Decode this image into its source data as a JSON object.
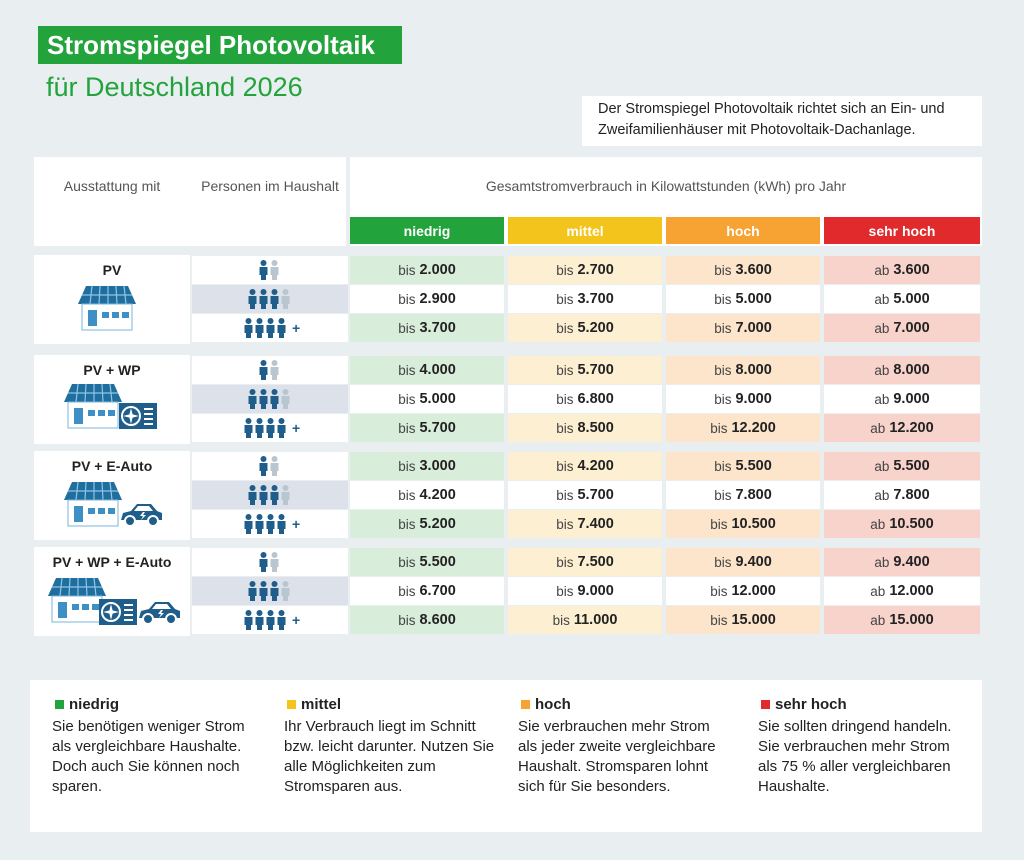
{
  "header": {
    "title": "Stromspiegel Photovoltaik",
    "subtitle": "für Deutschland 2026",
    "note": "Der Stromspiegel Photovoltaik richtet sich an Ein- und Zweifamilienhäuser mit Photovoltaik-Dachanlage."
  },
  "table": {
    "col_headers": [
      "Ausstattung mit",
      "Personen im Haushalt",
      "Gesamtstromverbrauch in Kilowattstunden (kWh) pro Jahr"
    ],
    "levels": [
      {
        "name": "niedrig",
        "color": "#22a33b",
        "tint": "#d8eedb"
      },
      {
        "name": "mittel",
        "color": "#f2c41c",
        "tint": "#fdf0d2"
      },
      {
        "name": "hoch",
        "color": "#f7a333",
        "tint": "#fde5cc"
      },
      {
        "name": "sehr hoch",
        "color": "#e02a2c",
        "tint": "#f7d3cc"
      }
    ],
    "groups": [
      {
        "label": "PV",
        "rows": [
          {
            "persons": [
              1,
              1
            ],
            "cells": [
              {
                "prefix": "bis",
                "amount": "2.000"
              },
              {
                "prefix": "bis",
                "amount": "2.700"
              },
              {
                "prefix": "bis",
                "amount": "3.600"
              },
              {
                "prefix": "ab",
                "amount": "3.600"
              }
            ]
          },
          {
            "persons": [
              3,
              1
            ],
            "cells": [
              {
                "prefix": "bis",
                "amount": "2.900"
              },
              {
                "prefix": "bis",
                "amount": "3.700"
              },
              {
                "prefix": "bis",
                "amount": "5.000"
              },
              {
                "prefix": "ab",
                "amount": "5.000"
              }
            ]
          },
          {
            "persons": [
              4,
              0
            ],
            "more": "+",
            "cells": [
              {
                "prefix": "bis",
                "amount": "3.700"
              },
              {
                "prefix": "bis",
                "amount": "5.200"
              },
              {
                "prefix": "bis",
                "amount": "7.000"
              },
              {
                "prefix": "ab",
                "amount": "7.000"
              }
            ]
          }
        ]
      },
      {
        "label": "PV + WP",
        "rows": [
          {
            "persons": [
              1,
              1
            ],
            "cells": [
              {
                "prefix": "bis",
                "amount": "4.000"
              },
              {
                "prefix": "bis",
                "amount": "5.700"
              },
              {
                "prefix": "bis",
                "amount": "8.000"
              },
              {
                "prefix": "ab",
                "amount": "8.000"
              }
            ]
          },
          {
            "persons": [
              3,
              1
            ],
            "cells": [
              {
                "prefix": "bis",
                "amount": "5.000"
              },
              {
                "prefix": "bis",
                "amount": "6.800"
              },
              {
                "prefix": "bis",
                "amount": "9.000"
              },
              {
                "prefix": "ab",
                "amount": "9.000"
              }
            ]
          },
          {
            "persons": [
              4,
              0
            ],
            "more": "+",
            "cells": [
              {
                "prefix": "bis",
                "amount": "5.700"
              },
              {
                "prefix": "bis",
                "amount": "8.500"
              },
              {
                "prefix": "bis",
                "amount": "12.200"
              },
              {
                "prefix": "ab",
                "amount": "12.200"
              }
            ]
          }
        ]
      },
      {
        "label": "PV + E-Auto",
        "rows": [
          {
            "persons": [
              1,
              1
            ],
            "cells": [
              {
                "prefix": "bis",
                "amount": "3.000"
              },
              {
                "prefix": "bis",
                "amount": "4.200"
              },
              {
                "prefix": "bis",
                "amount": "5.500"
              },
              {
                "prefix": "ab",
                "amount": "5.500"
              }
            ]
          },
          {
            "persons": [
              3,
              1
            ],
            "cells": [
              {
                "prefix": "bis",
                "amount": "4.200"
              },
              {
                "prefix": "bis",
                "amount": "5.700"
              },
              {
                "prefix": "bis",
                "amount": "7.800"
              },
              {
                "prefix": "ab",
                "amount": "7.800"
              }
            ]
          },
          {
            "persons": [
              4,
              0
            ],
            "more": "+",
            "cells": [
              {
                "prefix": "bis",
                "amount": "5.200"
              },
              {
                "prefix": "bis",
                "amount": "7.400"
              },
              {
                "prefix": "bis",
                "amount": "10.500"
              },
              {
                "prefix": "ab",
                "amount": "10.500"
              }
            ]
          }
        ]
      },
      {
        "label": "PV + WP + E-Auto",
        "rows": [
          {
            "persons": [
              1,
              1
            ],
            "cells": [
              {
                "prefix": "bis",
                "amount": "5.500"
              },
              {
                "prefix": "bis",
                "amount": "7.500"
              },
              {
                "prefix": "bis",
                "amount": "9.400"
              },
              {
                "prefix": "ab",
                "amount": "9.400"
              }
            ]
          },
          {
            "persons": [
              3,
              1
            ],
            "cells": [
              {
                "prefix": "bis",
                "amount": "6.700"
              },
              {
                "prefix": "bis",
                "amount": "9.000"
              },
              {
                "prefix": "bis",
                "amount": "12.000"
              },
              {
                "prefix": "ab",
                "amount": "12.000"
              }
            ]
          },
          {
            "persons": [
              4,
              0
            ],
            "more": "+",
            "cells": [
              {
                "prefix": "bis",
                "amount": "8.600"
              },
              {
                "prefix": "bis",
                "amount": "11.000"
              },
              {
                "prefix": "bis",
                "amount": "15.000"
              },
              {
                "prefix": "ab",
                "amount": "15.000"
              }
            ]
          }
        ]
      }
    ]
  },
  "legend": [
    {
      "name": "niedrig",
      "text": "Sie benötigen weniger Strom als vergleichbare Haushalte. Doch auch Sie können noch sparen."
    },
    {
      "name": "mittel",
      "text": "Ihr Verbrauch liegt im Schnitt bzw. leicht darunter. Nutzen Sie alle Möglichkeiten zum Stromsparen aus."
    },
    {
      "name": "hoch",
      "text": "Sie verbrauchen mehr Strom als jeder zweite vergleichbare Haushalt. Stromsparen lohnt sich für Sie besonders."
    },
    {
      "name": "sehr hoch",
      "text": "Sie sollten dringend handeln. Sie verbrauchen mehr Strom als 75 % aller vergleichbaren Haushalte."
    }
  ]
}
